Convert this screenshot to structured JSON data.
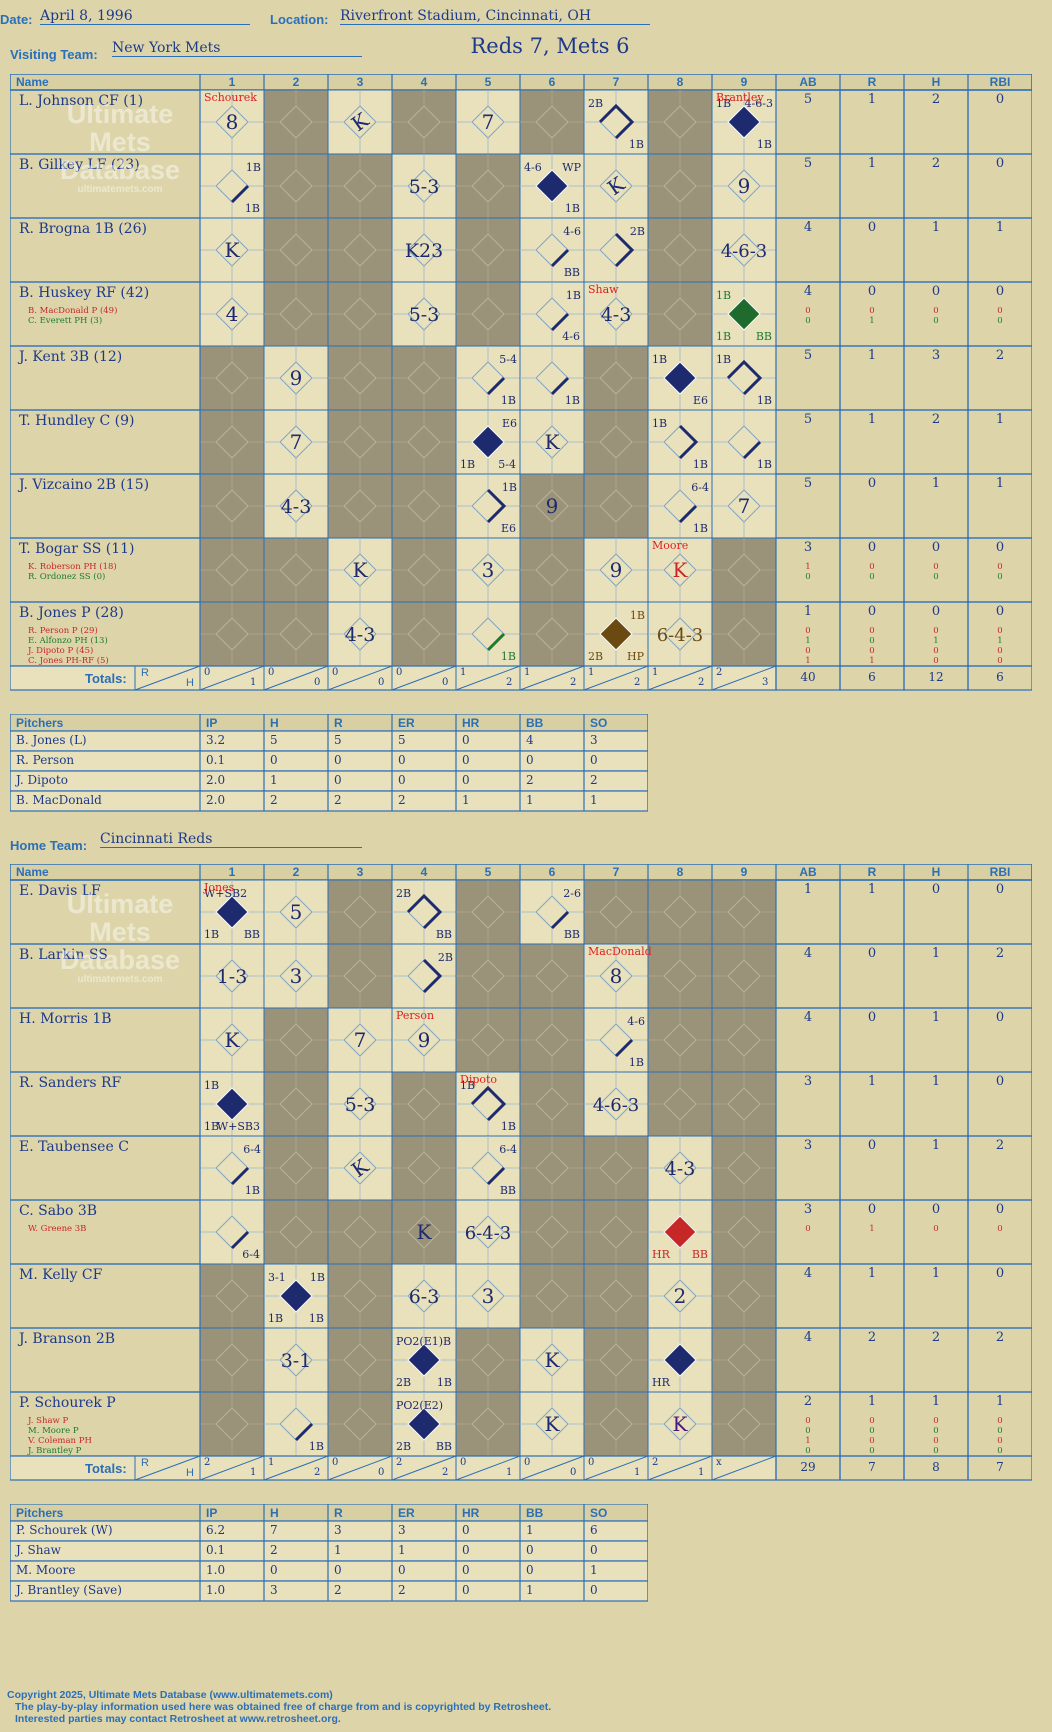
{
  "header": {
    "date_label": "Date:",
    "date": "April 8, 1996",
    "location_label": "Location:",
    "location": "Riverfront Stadium, Cincinnati, OH",
    "score_title": "Reds 7, Mets 6",
    "visiting_label": "Visiting Team:",
    "visiting_team": "New York Mets",
    "home_label": "Home Team:",
    "home_team": "Cincinnati Reds"
  },
  "watermark": {
    "line1": "Ultimate",
    "line2": "Mets",
    "line3": "Database",
    "url": "ultimatemets.com"
  },
  "columns": {
    "name": "Name",
    "innings": [
      "1",
      "2",
      "3",
      "4",
      "5",
      "6",
      "7",
      "8",
      "9"
    ],
    "stats": [
      "AB",
      "R",
      "H",
      "RBI"
    ]
  },
  "totals_label": "Totals:",
  "rh_r": "R",
  "rh_h": "H",
  "visitors": {
    "shade": [
      [
        0,
        1,
        0,
        1,
        0,
        1,
        0,
        1,
        0
      ],
      [
        0,
        1,
        1,
        0,
        1,
        0,
        0,
        1,
        0
      ],
      [
        0,
        1,
        1,
        0,
        1,
        0,
        0,
        1,
        0
      ],
      [
        0,
        1,
        1,
        0,
        1,
        0,
        0,
        1,
        0
      ],
      [
        1,
        0,
        1,
        1,
        0,
        0,
        1,
        0,
        0
      ],
      [
        1,
        0,
        1,
        1,
        0,
        0,
        1,
        0,
        0
      ],
      [
        1,
        0,
        1,
        1,
        0,
        1,
        1,
        0,
        0
      ],
      [
        1,
        1,
        0,
        1,
        0,
        1,
        0,
        0,
        1
      ],
      [
        1,
        1,
        0,
        1,
        0,
        1,
        0,
        0,
        1
      ]
    ],
    "players": [
      {
        "name": "L. Johnson CF (1)",
        "stats": [
          "5",
          "1",
          "2",
          "0"
        ],
        "subs": []
      },
      {
        "name": "B. Gilkey LF (23)",
        "stats": [
          "5",
          "1",
          "2",
          "0"
        ],
        "subs": []
      },
      {
        "name": "R. Brogna 1B (26)",
        "stats": [
          "4",
          "0",
          "1",
          "1"
        ],
        "subs": []
      },
      {
        "name": "B. Huskey RF (42)",
        "stats": [
          "4",
          "0",
          "0",
          "0"
        ],
        "subs": [
          {
            "name": "B. MacDonald P (49)",
            "cls": "r",
            "stats": [
              "0",
              "0",
              "0",
              "0"
            ]
          },
          {
            "name": "C. Everett PH (3)",
            "cls": "g",
            "stats": [
              "0",
              "1",
              "0",
              "0"
            ]
          }
        ]
      },
      {
        "name": "J. Kent 3B (12)",
        "stats": [
          "5",
          "1",
          "3",
          "2"
        ],
        "subs": []
      },
      {
        "name": "T. Hundley C (9)",
        "stats": [
          "5",
          "1",
          "2",
          "1"
        ],
        "subs": []
      },
      {
        "name": "J. Vizcaino 2B (15)",
        "stats": [
          "5",
          "0",
          "1",
          "1"
        ],
        "subs": []
      },
      {
        "name": "T. Bogar SS (11)",
        "stats": [
          "3",
          "0",
          "0",
          "0"
        ],
        "subs": [
          {
            "name": "K. Roberson PH (18)",
            "cls": "r",
            "stats": [
              "1",
              "0",
              "0",
              "0"
            ]
          },
          {
            "name": "R. Ordonez SS (0)",
            "cls": "g",
            "stats": [
              "0",
              "0",
              "0",
              "0"
            ]
          }
        ]
      },
      {
        "name": "B. Jones P (28)",
        "stats": [
          "1",
          "0",
          "0",
          "0"
        ],
        "subs": [
          {
            "name": "R. Person P (29)",
            "cls": "r",
            "stats": [
              "0",
              "0",
              "0",
              "0"
            ]
          },
          {
            "name": "E. Alfonzo PH (13)",
            "cls": "g",
            "stats": [
              "1",
              "0",
              "1",
              "1"
            ]
          },
          {
            "name": "J. Dipoto P (45)",
            "cls": "r",
            "stats": [
              "0",
              "0",
              "0",
              "0"
            ]
          },
          {
            "name": "C. Jones PH-RF (5)",
            "cls": "r",
            "stats": [
              "1",
              "1",
              "0",
              "0"
            ]
          }
        ]
      }
    ],
    "marks": [
      {
        "r": 0,
        "c": 0,
        "t": "8"
      },
      {
        "r": 0,
        "c": 0,
        "n": "Schourek",
        "nc": "red"
      },
      {
        "r": 0,
        "c": 2,
        "t": "K",
        "rot": 1
      },
      {
        "r": 0,
        "c": 4,
        "t": "7"
      },
      {
        "r": 0,
        "c": 6,
        "path": "s3",
        "tl": "2B",
        "br": "1B"
      },
      {
        "r": 0,
        "c": 8,
        "fill": "#1e2a6e",
        "tl": "1B",
        "br": "1B",
        "tr": "4-6-3",
        "n": "Brantley",
        "nc": "red"
      },
      {
        "r": 1,
        "c": 0,
        "path": "s1",
        "tr": "1B",
        "br": "1B"
      },
      {
        "r": 1,
        "c": 3,
        "t": "5-3"
      },
      {
        "r": 1,
        "c": 5,
        "fill": "#1e2a6e",
        "tl": "4-6",
        "tr": "WP",
        "br": "1B"
      },
      {
        "r": 1,
        "c": 6,
        "t": "K",
        "rot": 1
      },
      {
        "r": 1,
        "c": 8,
        "t": "9"
      },
      {
        "r": 2,
        "c": 0,
        "t": "K"
      },
      {
        "r": 2,
        "c": 3,
        "t": "K23"
      },
      {
        "r": 2,
        "c": 5,
        "path": "s1",
        "tr": "4-6",
        "br": "BB"
      },
      {
        "r": 2,
        "c": 6,
        "path": "s2",
        "tr": "2B"
      },
      {
        "r": 2,
        "c": 8,
        "t": "4-6-3"
      },
      {
        "r": 3,
        "c": 0,
        "t": "4"
      },
      {
        "r": 3,
        "c": 3,
        "t": "5-3"
      },
      {
        "r": 3,
        "c": 5,
        "path": "s1",
        "tr": "1B",
        "br": "4-6"
      },
      {
        "r": 3,
        "c": 6,
        "t": "4-3",
        "n": "Shaw",
        "nc": "red"
      },
      {
        "r": 3,
        "c": 8,
        "fill": "#1f6b2e",
        "tl": "1B",
        "bl": "1B",
        "br": "BB",
        "lc": "#1f7a2e"
      },
      {
        "r": 4,
        "c": 1,
        "t": "9"
      },
      {
        "r": 4,
        "c": 4,
        "path": "s1",
        "tr": "5-4",
        "br": "1B"
      },
      {
        "r": 4,
        "c": 5,
        "path": "s1",
        "br": "1B"
      },
      {
        "r": 4,
        "c": 7,
        "fill": "#1e2a6e",
        "tl": "1B",
        "br": "E6"
      },
      {
        "r": 4,
        "c": 8,
        "path": "s3",
        "tl": "1B",
        "br": "1B"
      },
      {
        "r": 5,
        "c": 1,
        "t": "7"
      },
      {
        "r": 5,
        "c": 4,
        "fill": "#1e2a6e",
        "tr": "E6",
        "bl": "1B",
        "br": "5-4"
      },
      {
        "r": 5,
        "c": 5,
        "t": "K"
      },
      {
        "r": 5,
        "c": 7,
        "path": "s2",
        "tl": "1B",
        "br": "1B"
      },
      {
        "r": 5,
        "c": 8,
        "path": "s1",
        "br": "1B"
      },
      {
        "r": 6,
        "c": 1,
        "t": "4-3"
      },
      {
        "r": 6,
        "c": 4,
        "path": "s2",
        "tr": "1B",
        "br": "E6"
      },
      {
        "r": 6,
        "c": 5,
        "t": "9"
      },
      {
        "r": 6,
        "c": 7,
        "path": "s1",
        "tr": "6-4",
        "br": "1B"
      },
      {
        "r": 6,
        "c": 8,
        "t": "7"
      },
      {
        "r": 7,
        "c": 2,
        "t": "K"
      },
      {
        "r": 7,
        "c": 4,
        "t": "3"
      },
      {
        "r": 7,
        "c": 6,
        "t": "9"
      },
      {
        "r": 7,
        "c": 7,
        "t": "K",
        "tc": "#c62828",
        "n": "Moore",
        "nc": "red"
      },
      {
        "r": 8,
        "c": 2,
        "t": "4-3"
      },
      {
        "r": 8,
        "c": 4,
        "path": "s1",
        "pc": "#1f7a2e",
        "br": "1B",
        "lc": "#1f7a2e"
      },
      {
        "r": 8,
        "c": 6,
        "fill": "#6b4a12",
        "tr": "1B",
        "bl": "2B",
        "br": "HP",
        "lc": "#6b4a12"
      },
      {
        "r": 8,
        "c": 7,
        "t": "6-4-3",
        "tc": "#6b4a12"
      }
    ],
    "inn_totals": [
      [
        "0",
        "1"
      ],
      [
        "0",
        "0"
      ],
      [
        "0",
        "0"
      ],
      [
        "0",
        "0"
      ],
      [
        "1",
        "2"
      ],
      [
        "1",
        "2"
      ],
      [
        "1",
        "2"
      ],
      [
        "1",
        "2"
      ],
      [
        "2",
        "3"
      ]
    ],
    "totals": [
      "40",
      "6",
      "12",
      "6"
    ]
  },
  "visiting_pitchers": {
    "headers": [
      "Pitchers",
      "IP",
      "H",
      "R",
      "ER",
      "HR",
      "BB",
      "SO"
    ],
    "rows": [
      [
        "B. Jones (L)",
        "3.2",
        "5",
        "5",
        "5",
        "0",
        "4",
        "3"
      ],
      [
        "R. Person",
        "0.1",
        "0",
        "0",
        "0",
        "0",
        "0",
        "0"
      ],
      [
        "J. Dipoto",
        "2.0",
        "1",
        "0",
        "0",
        "0",
        "2",
        "2"
      ],
      [
        "B. MacDonald",
        "2.0",
        "2",
        "2",
        "2",
        "1",
        "1",
        "1"
      ]
    ]
  },
  "home": {
    "shade": [
      [
        0,
        0,
        1,
        0,
        1,
        0,
        1,
        1,
        1
      ],
      [
        0,
        0,
        1,
        0,
        1,
        1,
        0,
        1,
        1
      ],
      [
        0,
        1,
        0,
        0,
        1,
        1,
        0,
        1,
        1
      ],
      [
        0,
        1,
        0,
        1,
        0,
        1,
        0,
        1,
        1
      ],
      [
        0,
        1,
        0,
        1,
        0,
        1,
        1,
        0,
        1
      ],
      [
        0,
        1,
        1,
        1,
        0,
        1,
        1,
        0,
        1
      ],
      [
        1,
        0,
        1,
        0,
        0,
        1,
        1,
        0,
        1
      ],
      [
        1,
        0,
        1,
        0,
        1,
        0,
        1,
        0,
        1
      ],
      [
        1,
        0,
        1,
        0,
        1,
        0,
        1,
        0,
        1
      ]
    ],
    "players": [
      {
        "name": "E. Davis LF",
        "stats": [
          "1",
          "1",
          "0",
          "0"
        ],
        "subs": []
      },
      {
        "name": "B. Larkin SS",
        "stats": [
          "4",
          "0",
          "1",
          "2"
        ],
        "subs": []
      },
      {
        "name": "H. Morris 1B",
        "stats": [
          "4",
          "0",
          "1",
          "0"
        ],
        "subs": []
      },
      {
        "name": "R. Sanders RF",
        "stats": [
          "3",
          "1",
          "1",
          "0"
        ],
        "subs": []
      },
      {
        "name": "E. Taubensee C",
        "stats": [
          "3",
          "0",
          "1",
          "2"
        ],
        "subs": []
      },
      {
        "name": "C. Sabo 3B",
        "stats": [
          "3",
          "0",
          "0",
          "0"
        ],
        "subs": [
          {
            "name": "W. Greene 3B",
            "cls": "r",
            "stats": [
              "0",
              "1",
              "0",
              "0"
            ]
          }
        ]
      },
      {
        "name": "M. Kelly CF",
        "stats": [
          "4",
          "1",
          "1",
          "0"
        ],
        "subs": []
      },
      {
        "name": "J. Branson 2B",
        "stats": [
          "4",
          "2",
          "2",
          "2"
        ],
        "subs": []
      },
      {
        "name": "P. Schourek P",
        "stats": [
          "2",
          "1",
          "1",
          "1"
        ],
        "subs": [
          {
            "name": "J. Shaw P",
            "cls": "r",
            "stats": [
              "0",
              "0",
              "0",
              "0"
            ]
          },
          {
            "name": "M. Moore P",
            "cls": "g",
            "stats": [
              "0",
              "0",
              "0",
              "0"
            ]
          },
          {
            "name": "V. Coleman PH",
            "cls": "r",
            "stats": [
              "1",
              "0",
              "0",
              "0"
            ]
          },
          {
            "name": "J. Brantley P",
            "cls": "g",
            "stats": [
              "0",
              "0",
              "0",
              "0"
            ]
          }
        ]
      }
    ],
    "marks": [
      {
        "r": 0,
        "c": 0,
        "fill": "#1e2a6e",
        "tl": "W+SB2",
        "bl": "1B",
        "br": "BB",
        "n": "Jones",
        "nc": "red"
      },
      {
        "r": 0,
        "c": 1,
        "t": "5"
      },
      {
        "r": 0,
        "c": 3,
        "path": "s3",
        "tl": "2B",
        "br": "BB"
      },
      {
        "r": 0,
        "c": 5,
        "path": "s1",
        "tr": "2-6",
        "br": "BB"
      },
      {
        "r": 1,
        "c": 0,
        "t": "1-3"
      },
      {
        "r": 1,
        "c": 1,
        "t": "3"
      },
      {
        "r": 1,
        "c": 3,
        "path": "s2",
        "tr": "2B"
      },
      {
        "r": 1,
        "c": 6,
        "t": "8",
        "n": "MacDonald",
        "nc": "red"
      },
      {
        "r": 2,
        "c": 0,
        "t": "K"
      },
      {
        "r": 2,
        "c": 2,
        "t": "7"
      },
      {
        "r": 2,
        "c": 3,
        "t": "9",
        "n": "Person",
        "nc": "red"
      },
      {
        "r": 2,
        "c": 6,
        "path": "s1",
        "tr": "4-6",
        "br": "1B"
      },
      {
        "r": 3,
        "c": 0,
        "fill": "#1e2a6e",
        "tl": "1B",
        "bl": "1B",
        "br": "W+SB3"
      },
      {
        "r": 3,
        "c": 2,
        "t": "5-3"
      },
      {
        "r": 3,
        "c": 4,
        "path": "s3",
        "tl": "1B",
        "br": "1B",
        "n": "Dipoto",
        "nc": "red"
      },
      {
        "r": 3,
        "c": 6,
        "t": "4-6-3"
      },
      {
        "r": 4,
        "c": 0,
        "path": "s1",
        "tr": "6-4",
        "br": "1B"
      },
      {
        "r": 4,
        "c": 2,
        "t": "K",
        "rot": 1
      },
      {
        "r": 4,
        "c": 4,
        "path": "s1",
        "tr": "6-4",
        "br": "BB"
      },
      {
        "r": 4,
        "c": 7,
        "t": "4-3"
      },
      {
        "r": 5,
        "c": 0,
        "path": "s1",
        "br": "6-4"
      },
      {
        "r": 5,
        "c": 3,
        "t": "K"
      },
      {
        "r": 5,
        "c": 4,
        "t": "6-4-3"
      },
      {
        "r": 5,
        "c": 7,
        "fill": "#c62828",
        "bl": "HR",
        "br": "BB",
        "lc": "#c62828"
      },
      {
        "r": 6,
        "c": 1,
        "fill": "#1e2a6e",
        "tl": "3-1",
        "tr": "1B",
        "bl": "1B",
        "br": "1B"
      },
      {
        "r": 6,
        "c": 3,
        "t": "6-3"
      },
      {
        "r": 6,
        "c": 4,
        "t": "3"
      },
      {
        "r": 6,
        "c": 7,
        "t": "2"
      },
      {
        "r": 7,
        "c": 1,
        "t": "3-1"
      },
      {
        "r": 7,
        "c": 3,
        "fill": "#1e2a6e",
        "tl": "PO2(E1)B",
        "bl": "2B",
        "br": "1B"
      },
      {
        "r": 7,
        "c": 5,
        "t": "K"
      },
      {
        "r": 7,
        "c": 7,
        "fill": "#1e2a6e",
        "bl": "HR"
      },
      {
        "r": 8,
        "c": 1,
        "path": "s1",
        "br": "1B"
      },
      {
        "r": 8,
        "c": 3,
        "fill": "#1e2a6e",
        "tl": "PO2(E2)",
        "bl": "2B",
        "br": "BB"
      },
      {
        "r": 8,
        "c": 5,
        "t": "K"
      },
      {
        "r": 8,
        "c": 7,
        "t": "K",
        "tc": "#4a1a7a"
      }
    ],
    "inn_totals": [
      [
        "2",
        "1"
      ],
      [
        "1",
        "2"
      ],
      [
        "0",
        "0"
      ],
      [
        "2",
        "2"
      ],
      [
        "0",
        "1"
      ],
      [
        "0",
        "0"
      ],
      [
        "0",
        "1"
      ],
      [
        "2",
        "1"
      ],
      [
        "x",
        ""
      ]
    ],
    "totals": [
      "29",
      "7",
      "8",
      "7"
    ]
  },
  "home_pitchers": {
    "headers": [
      "Pitchers",
      "IP",
      "H",
      "R",
      "ER",
      "HR",
      "BB",
      "SO"
    ],
    "rows": [
      [
        "P. Schourek (W)",
        "6.2",
        "7",
        "3",
        "3",
        "0",
        "1",
        "6"
      ],
      [
        "J. Shaw",
        "0.1",
        "2",
        "1",
        "1",
        "0",
        "0",
        "0"
      ],
      [
        "M. Moore",
        "1.0",
        "0",
        "0",
        "0",
        "0",
        "0",
        "1"
      ],
      [
        "J. Brantley (Save)",
        "1.0",
        "3",
        "2",
        "2",
        "0",
        "1",
        "0"
      ]
    ]
  },
  "footer": {
    "line1": "Copyright 2025, Ultimate Mets Database (www.ultimatemets.com)",
    "line2": "The play-by-play information used here was obtained free of charge from and is copyrighted by Retrosheet.",
    "line3": "Interested parties may contact Retrosheet at www.retrosheet.org."
  }
}
